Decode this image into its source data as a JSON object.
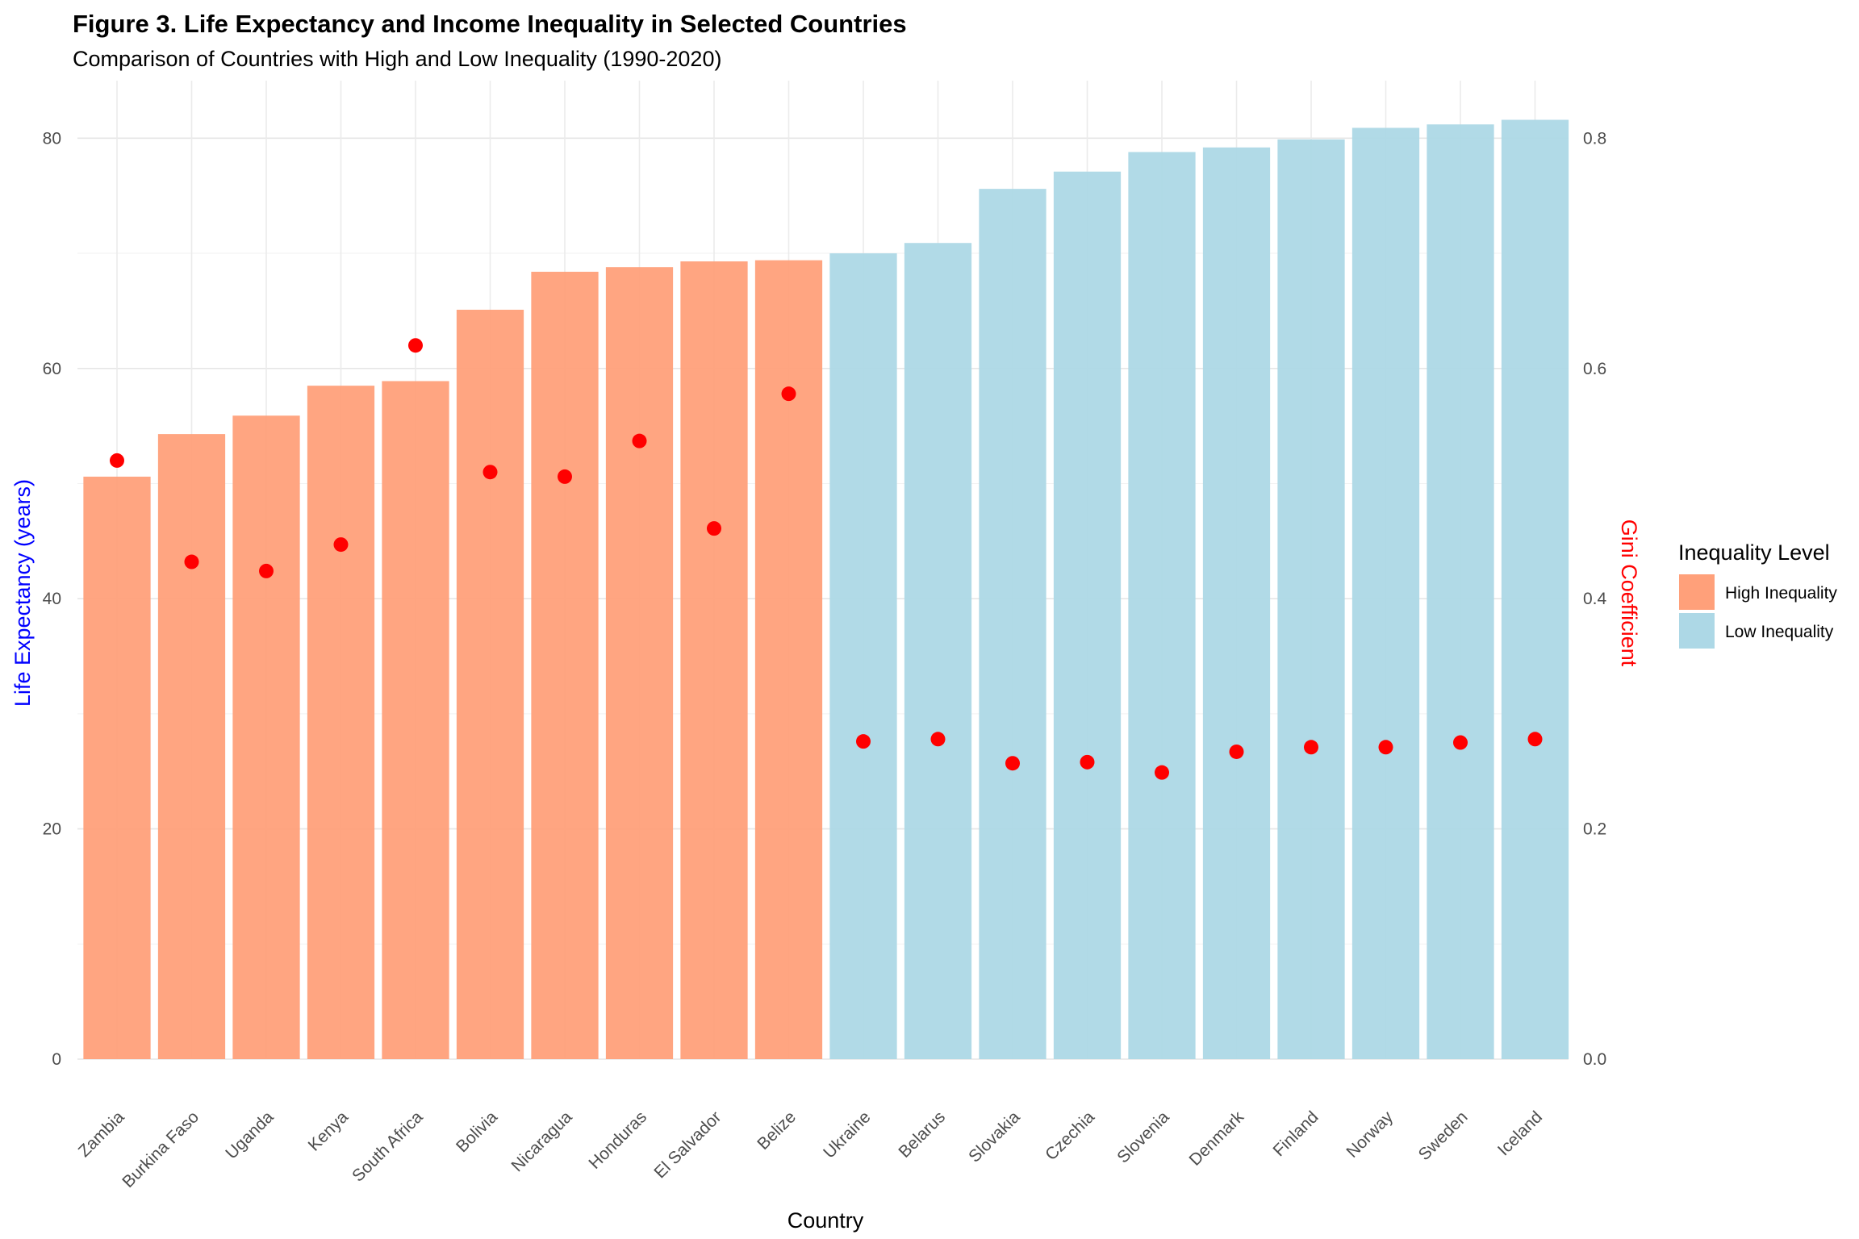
{
  "chart_data": {
    "type": "bar",
    "title": "Figure 3. Life Expectancy and Income Inequality in Selected Countries",
    "subtitle": "Comparison of Countries with High and Low Inequality (1990-2020)",
    "xlabel": "Country",
    "ylabel": "Life Expectancy (years)",
    "y2label": "Gini Coefficient",
    "ylim": [
      0,
      85
    ],
    "y2lim": [
      0,
      0.85
    ],
    "yticks": [
      "0",
      "20",
      "40",
      "60",
      "80"
    ],
    "y2ticks": [
      "0.0",
      "0.2",
      "0.4",
      "0.6",
      "0.8"
    ],
    "grid": true,
    "legend": {
      "title": "Inequality Level",
      "placement": "right",
      "entries": [
        {
          "name": "High Inequality",
          "color": "#FFA07A"
        },
        {
          "name": "Low Inequality",
          "color": "#ADD8E6"
        }
      ]
    },
    "point_color": "#FF0000",
    "categories": [
      "Zambia",
      "Burkina Faso",
      "Uganda",
      "Kenya",
      "South Africa",
      "Bolivia",
      "Nicaragua",
      "Honduras",
      "El Salvador",
      "Belize",
      "Ukraine",
      "Belarus",
      "Slovakia",
      "Czechia",
      "Slovenia",
      "Denmark",
      "Finland",
      "Norway",
      "Sweden",
      "Iceland"
    ],
    "groups": [
      "High Inequality",
      "High Inequality",
      "High Inequality",
      "High Inequality",
      "High Inequality",
      "High Inequality",
      "High Inequality",
      "High Inequality",
      "High Inequality",
      "High Inequality",
      "Low Inequality",
      "Low Inequality",
      "Low Inequality",
      "Low Inequality",
      "Low Inequality",
      "Low Inequality",
      "Low Inequality",
      "Low Inequality",
      "Low Inequality",
      "Low Inequality"
    ],
    "life_expectancy": [
      50.6,
      54.3,
      55.9,
      58.5,
      58.9,
      65.1,
      68.4,
      68.8,
      69.3,
      69.4,
      70.0,
      70.9,
      75.6,
      77.1,
      78.8,
      79.2,
      79.9,
      80.9,
      81.2,
      81.6
    ],
    "gini": [
      0.52,
      0.432,
      0.424,
      0.447,
      0.62,
      0.51,
      0.506,
      0.537,
      0.461,
      0.578,
      0.276,
      0.278,
      0.257,
      0.258,
      0.249,
      0.267,
      0.271,
      0.271,
      0.275,
      0.278
    ]
  }
}
